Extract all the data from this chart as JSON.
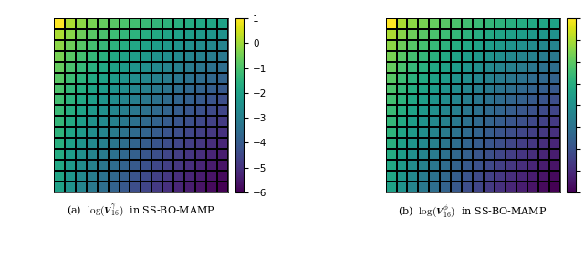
{
  "n": 16,
  "caption_a": "(a)  $\\log(\\boldsymbol{V}_{16}^{\\gamma})$  in SS-BO-MAMP",
  "caption_b": "(b)  $\\log(\\boldsymbol{V}_{16}^{\\phi})$  in SS-BO-MAMP",
  "vmin_a": -6,
  "vmax_a": 1,
  "vmin_b": -8,
  "vmax_b": 0,
  "colormap": "viridis",
  "figsize": [
    6.4,
    2.85
  ],
  "dpi": 100,
  "caption_fontsize": 8
}
